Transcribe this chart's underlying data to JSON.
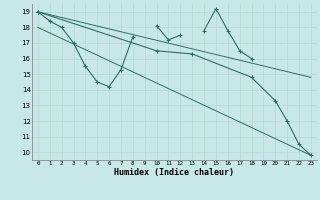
{
  "xlabel": "Humidex (Indice chaleur)",
  "bg_color": "#c8e8e8",
  "line_color": "#2d6e60",
  "grid_color": "#b8d8d0",
  "x_values": [
    0,
    1,
    2,
    3,
    4,
    5,
    6,
    7,
    8,
    9,
    10,
    11,
    12,
    13,
    14,
    15,
    16,
    17,
    18,
    19,
    20,
    21,
    22,
    23
  ],
  "series1_y": [
    19.0,
    18.4,
    18.0,
    17.0,
    15.5,
    14.5,
    14.2,
    15.3,
    17.4,
    null,
    18.1,
    17.2,
    17.5,
    null,
    17.8,
    19.2,
    17.8,
    16.5,
    16.0,
    null,
    null,
    null,
    null,
    null
  ],
  "series2_y": [
    19.0,
    null,
    null,
    null,
    null,
    null,
    null,
    null,
    null,
    null,
    16.5,
    null,
    null,
    16.3,
    null,
    null,
    null,
    null,
    14.8,
    null,
    13.3,
    12.0,
    10.5,
    9.8
  ],
  "trend1_x": [
    0,
    23
  ],
  "trend1_y": [
    19.0,
    14.8
  ],
  "trend2_x": [
    0,
    23
  ],
  "trend2_y": [
    18.0,
    9.8
  ],
  "ylim": [
    9.5,
    19.5
  ],
  "xlim": [
    -0.5,
    23.5
  ],
  "yticks": [
    10,
    11,
    12,
    13,
    14,
    15,
    16,
    17,
    18,
    19
  ],
  "xticks": [
    0,
    1,
    2,
    3,
    4,
    5,
    6,
    7,
    8,
    9,
    10,
    11,
    12,
    13,
    14,
    15,
    16,
    17,
    18,
    19,
    20,
    21,
    22,
    23
  ]
}
